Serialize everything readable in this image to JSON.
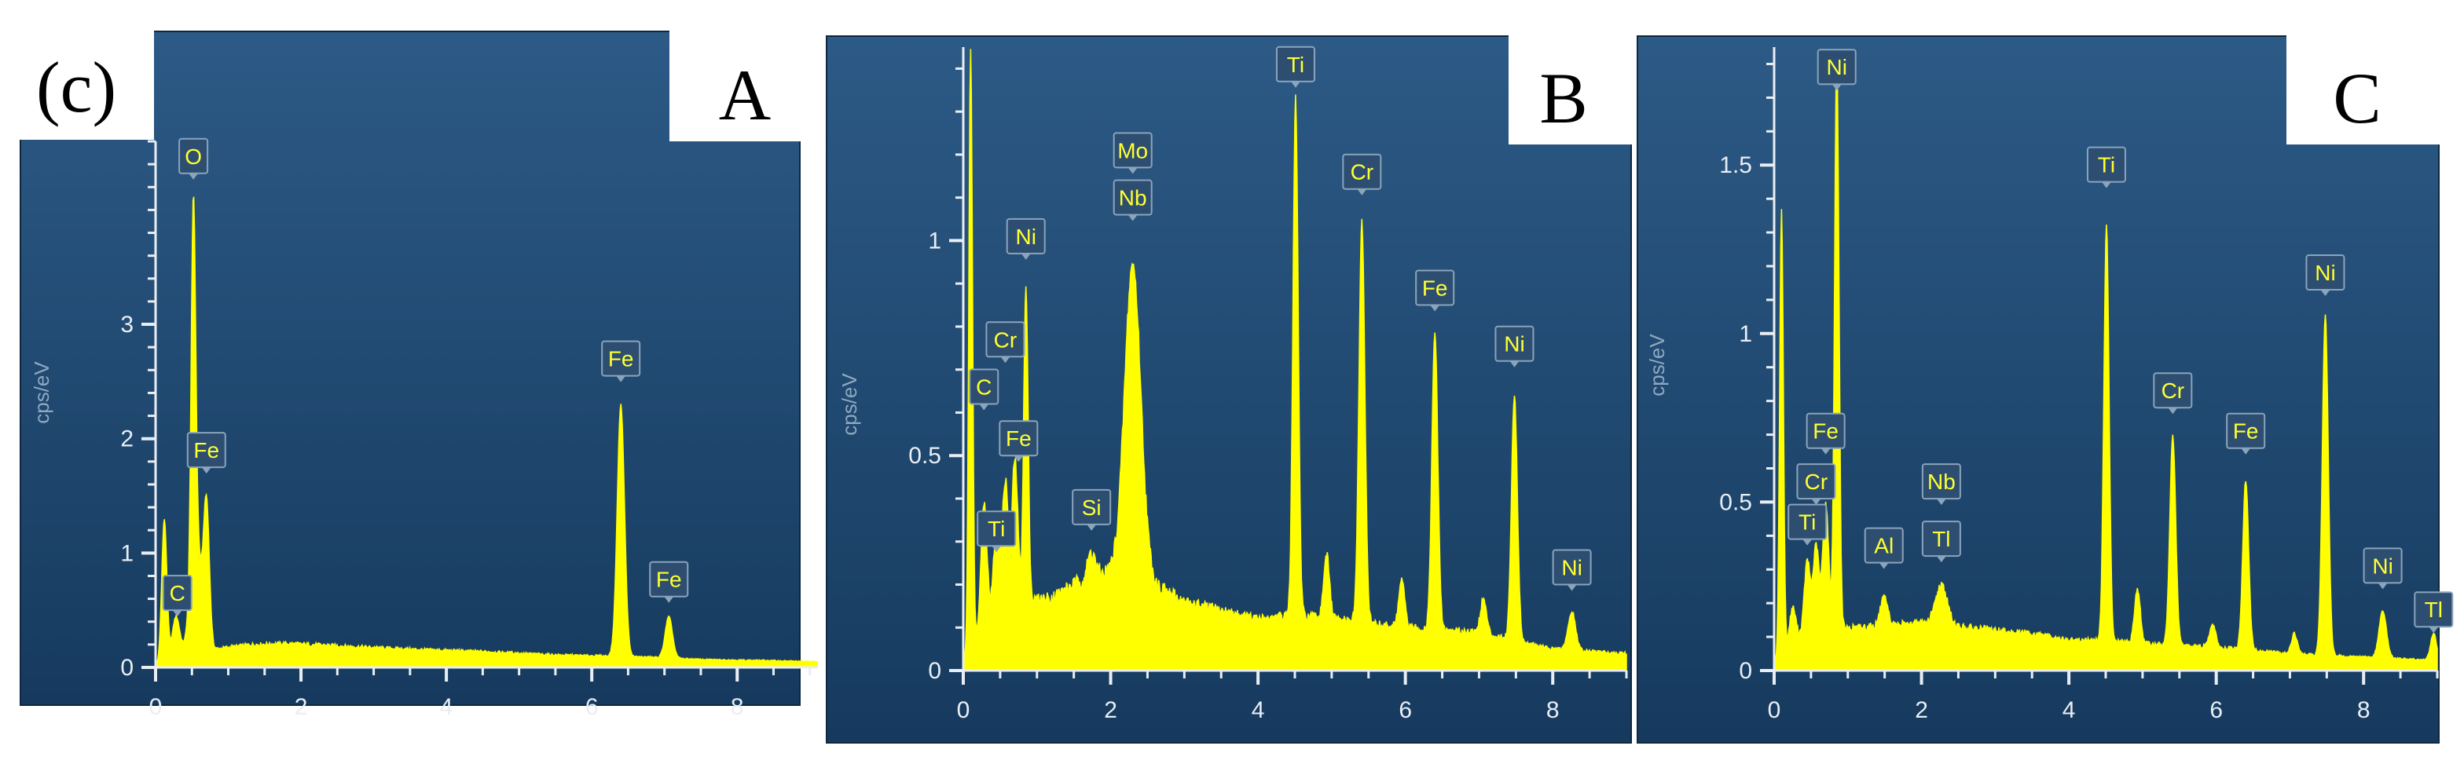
{
  "figure": {
    "panel_tag": "(c)"
  },
  "style": {
    "panel_bg_top": "#2c5a86",
    "panel_bg_bottom": "#163a5e",
    "spectrum_color": "#ffff00",
    "axis_color": "#e9eef4",
    "tick_label_color": "#e9eef4",
    "ylabel_color": "#8fa8c0",
    "peak_tag_bg": "#2d4e70",
    "peak_tag_border": "#8aa4bc",
    "peak_tag_text": "#ffff33"
  },
  "chart_data": [
    {
      "type": "area",
      "panel_letter": "A",
      "ylabel": "cps/eV",
      "xlim": [
        0,
        9.1
      ],
      "ylim": [
        0,
        4.6
      ],
      "xticks": [
        "0",
        "2",
        "4",
        "6",
        "8"
      ],
      "yticks": [
        "0",
        "1",
        "2",
        "3"
      ],
      "baseline": [
        [
          0.0,
          0.02
        ],
        [
          0.15,
          0.05
        ],
        [
          0.35,
          0.12
        ],
        [
          0.8,
          0.16
        ],
        [
          1.3,
          0.2
        ],
        [
          1.8,
          0.21
        ],
        [
          2.5,
          0.19
        ],
        [
          3.5,
          0.16
        ],
        [
          4.5,
          0.14
        ],
        [
          5.5,
          0.11
        ],
        [
          6.2,
          0.1
        ],
        [
          6.8,
          0.09
        ],
        [
          7.5,
          0.07
        ],
        [
          8.5,
          0.06
        ],
        [
          9.1,
          0.05
        ]
      ],
      "peaks": [
        {
          "x": 0.12,
          "h": 1.25,
          "w": 0.035
        },
        {
          "x": 0.28,
          "h": 0.35,
          "w": 0.05
        },
        {
          "x": 0.52,
          "h": 3.05,
          "w": 0.03
        },
        {
          "x": 0.55,
          "h": 1.05,
          "w": 0.07
        },
        {
          "x": 0.7,
          "h": 1.25,
          "w": 0.04
        },
        {
          "x": 6.4,
          "h": 2.2,
          "w": 0.05
        },
        {
          "x": 7.06,
          "h": 0.36,
          "w": 0.05
        }
      ],
      "labels": [
        {
          "text": "O",
          "x": 0.52,
          "y": 4.32
        },
        {
          "text": "Fe",
          "x": 0.7,
          "y": 1.75
        },
        {
          "text": "C",
          "x": 0.3,
          "y": 0.5
        },
        {
          "text": "Fe",
          "x": 6.4,
          "y": 2.55
        },
        {
          "text": "Fe",
          "x": 7.06,
          "y": 0.62
        }
      ]
    },
    {
      "type": "area",
      "panel_letter": "B",
      "ylabel": "cps/eV",
      "xlim": [
        0,
        9.0
      ],
      "ylim": [
        0,
        1.45
      ],
      "xticks": [
        "0",
        "2",
        "4",
        "6",
        "8"
      ],
      "yticks": [
        "0",
        "0.5",
        "1"
      ],
      "baseline": [
        [
          0.0,
          0.02
        ],
        [
          0.1,
          0.05
        ],
        [
          0.3,
          0.12
        ],
        [
          0.8,
          0.16
        ],
        [
          1.2,
          0.17
        ],
        [
          1.6,
          0.21
        ],
        [
          2.0,
          0.23
        ],
        [
          2.6,
          0.2
        ],
        [
          3.0,
          0.16
        ],
        [
          3.5,
          0.14
        ],
        [
          4.0,
          0.12
        ],
        [
          4.5,
          0.13
        ],
        [
          5.0,
          0.12
        ],
        [
          6.0,
          0.1
        ],
        [
          7.0,
          0.09
        ],
        [
          8.0,
          0.05
        ],
        [
          9.0,
          0.04
        ]
      ],
      "peaks": [
        {
          "x": 0.1,
          "h": 1.4,
          "w": 0.025
        },
        {
          "x": 0.28,
          "h": 0.28,
          "w": 0.04
        },
        {
          "x": 0.45,
          "h": 0.2,
          "w": 0.04
        },
        {
          "x": 0.57,
          "h": 0.3,
          "w": 0.04
        },
        {
          "x": 0.7,
          "h": 0.34,
          "w": 0.04
        },
        {
          "x": 0.85,
          "h": 0.73,
          "w": 0.03
        },
        {
          "x": 1.74,
          "h": 0.06,
          "w": 0.05
        },
        {
          "x": 2.3,
          "h": 0.73,
          "w": 0.11
        },
        {
          "x": 4.51,
          "h": 1.2,
          "w": 0.035
        },
        {
          "x": 4.93,
          "h": 0.15,
          "w": 0.04
        },
        {
          "x": 5.41,
          "h": 0.93,
          "w": 0.04
        },
        {
          "x": 5.95,
          "h": 0.11,
          "w": 0.04
        },
        {
          "x": 6.4,
          "h": 0.69,
          "w": 0.04
        },
        {
          "x": 7.06,
          "h": 0.08,
          "w": 0.04
        },
        {
          "x": 7.48,
          "h": 0.57,
          "w": 0.04
        },
        {
          "x": 8.26,
          "h": 0.09,
          "w": 0.05
        }
      ],
      "labels": [
        {
          "text": "Ti",
          "x": 4.51,
          "y": 1.37
        },
        {
          "text": "Mo",
          "x": 2.3,
          "y": 1.17
        },
        {
          "text": "Nb",
          "x": 2.3,
          "y": 1.06
        },
        {
          "text": "Cr",
          "x": 5.41,
          "y": 1.12
        },
        {
          "text": "Ni",
          "x": 0.85,
          "y": 0.97
        },
        {
          "text": "Fe",
          "x": 6.4,
          "y": 0.85
        },
        {
          "text": "Cr",
          "x": 0.57,
          "y": 0.73
        },
        {
          "text": "Ni",
          "x": 7.48,
          "y": 0.72
        },
        {
          "text": "C",
          "x": 0.28,
          "y": 0.62
        },
        {
          "text": "Fe",
          "x": 0.75,
          "y": 0.5
        },
        {
          "text": "Si",
          "x": 1.74,
          "y": 0.34
        },
        {
          "text": "Ti",
          "x": 0.45,
          "y": 0.29
        },
        {
          "text": "Ni",
          "x": 8.26,
          "y": 0.2
        }
      ]
    },
    {
      "type": "area",
      "panel_letter": "C",
      "ylabel": "cps/eV",
      "xlim": [
        0,
        9.0
      ],
      "ylim": [
        0,
        1.85
      ],
      "xticks": [
        "0",
        "2",
        "4",
        "6",
        "8"
      ],
      "yticks": [
        "0",
        "0.5",
        "1",
        "1.5"
      ],
      "baseline": [
        [
          0.0,
          0.02
        ],
        [
          0.1,
          0.05
        ],
        [
          0.3,
          0.1
        ],
        [
          0.8,
          0.12
        ],
        [
          1.2,
          0.13
        ],
        [
          2.0,
          0.14
        ],
        [
          2.5,
          0.13
        ],
        [
          3.0,
          0.12
        ],
        [
          3.5,
          0.11
        ],
        [
          4.0,
          0.09
        ],
        [
          4.5,
          0.09
        ],
        [
          5.0,
          0.08
        ],
        [
          6.0,
          0.07
        ],
        [
          7.0,
          0.05
        ],
        [
          8.0,
          0.04
        ],
        [
          9.0,
          0.03
        ]
      ],
      "peaks": [
        {
          "x": 0.1,
          "h": 1.32,
          "w": 0.025
        },
        {
          "x": 0.25,
          "h": 0.1,
          "w": 0.04
        },
        {
          "x": 0.45,
          "h": 0.22,
          "w": 0.04
        },
        {
          "x": 0.57,
          "h": 0.26,
          "w": 0.04
        },
        {
          "x": 0.7,
          "h": 0.38,
          "w": 0.04
        },
        {
          "x": 0.85,
          "h": 1.72,
          "w": 0.03
        },
        {
          "x": 1.49,
          "h": 0.08,
          "w": 0.05
        },
        {
          "x": 2.27,
          "h": 0.12,
          "w": 0.08
        },
        {
          "x": 4.51,
          "h": 1.23,
          "w": 0.035
        },
        {
          "x": 4.93,
          "h": 0.16,
          "w": 0.04
        },
        {
          "x": 5.41,
          "h": 0.62,
          "w": 0.04
        },
        {
          "x": 5.95,
          "h": 0.07,
          "w": 0.04
        },
        {
          "x": 6.4,
          "h": 0.5,
          "w": 0.04
        },
        {
          "x": 7.06,
          "h": 0.06,
          "w": 0.04
        },
        {
          "x": 7.48,
          "h": 1.01,
          "w": 0.04
        },
        {
          "x": 8.26,
          "h": 0.14,
          "w": 0.05
        },
        {
          "x": 8.95,
          "h": 0.08,
          "w": 0.04
        }
      ],
      "labels": [
        {
          "text": "Ni",
          "x": 0.85,
          "y": 1.74
        },
        {
          "text": "Ti",
          "x": 4.51,
          "y": 1.45
        },
        {
          "text": "Ni",
          "x": 7.48,
          "y": 1.13
        },
        {
          "text": "Cr",
          "x": 5.41,
          "y": 0.78
        },
        {
          "text": "Fe",
          "x": 6.4,
          "y": 0.66
        },
        {
          "text": "Fe",
          "x": 0.7,
          "y": 0.66
        },
        {
          "text": "Cr",
          "x": 0.57,
          "y": 0.51
        },
        {
          "text": "Nb",
          "x": 2.27,
          "y": 0.51
        },
        {
          "text": "Ti",
          "x": 0.45,
          "y": 0.39
        },
        {
          "text": "Al",
          "x": 1.49,
          "y": 0.32
        },
        {
          "text": "Tl",
          "x": 2.27,
          "y": 0.34
        },
        {
          "text": "Ni",
          "x": 8.26,
          "y": 0.26
        },
        {
          "text": "Tl",
          "x": 8.95,
          "y": 0.13
        }
      ]
    }
  ]
}
